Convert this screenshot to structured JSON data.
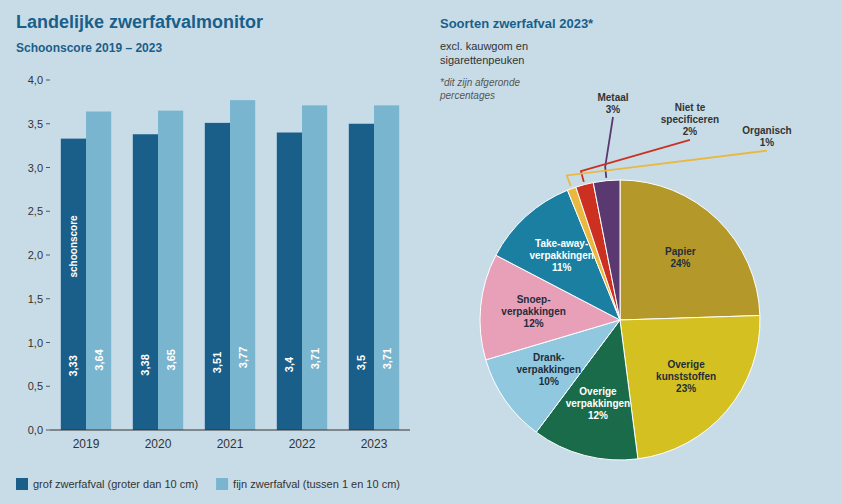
{
  "chart_data": [
    {
      "type": "bar",
      "title": "Landelijke zwerfafvalmonitor",
      "subtitle": "Schoonscore 2019 – 2023",
      "categories": [
        "2019",
        "2020",
        "2021",
        "2022",
        "2023"
      ],
      "series": [
        {
          "name": "grof zwerfafval (groter dan 10 cm)",
          "color": "#1a5f8a",
          "values": [
            3.33,
            3.38,
            3.51,
            3.4,
            3.5
          ],
          "value_labels": [
            "3,33",
            "3,38",
            "3,51",
            "3,4",
            "3,5"
          ]
        },
        {
          "name": "fijn zwerfafval (tussen 1 en 10 cm)",
          "color": "#7ab5d0",
          "values": [
            3.64,
            3.65,
            3.77,
            3.71,
            3.71
          ],
          "value_labels": [
            "3,64",
            "3,65",
            "3,77",
            "3,71",
            "3,71"
          ]
        }
      ],
      "annotations": [
        "schoonscore"
      ],
      "ylim": [
        0,
        4.0
      ],
      "yticks": [
        {
          "value": 0.0,
          "label": "0,0"
        },
        {
          "value": 0.5,
          "label": "0,5"
        },
        {
          "value": 1.0,
          "label": "1,0"
        },
        {
          "value": 1.5,
          "label": "1,5"
        },
        {
          "value": 2.0,
          "label": "2,0"
        },
        {
          "value": 2.5,
          "label": "2,5"
        },
        {
          "value": 3.0,
          "label": "3,0"
        },
        {
          "value": 3.5,
          "label": "3,5"
        },
        {
          "value": 4.0,
          "label": "4,0"
        }
      ],
      "grid": false,
      "legend": "bottom",
      "data_labels": true
    },
    {
      "type": "pie",
      "title": "Soorten zwerfafval 2023*",
      "subtitle": "excl. kauwgom en\nsigarettenpeuken",
      "note": "*dit zijn afgeronde\npercentages",
      "categories": [
        "Papier",
        "Overige\nkunststoffen",
        "Overige\nverpakkingen",
        "Drank-\nverpakkingen",
        "Snoep-\nverpakkingen",
        "Take-away-\nverpakkingen",
        "Organisch",
        "Niet te\nspecificeren",
        "Metaal"
      ],
      "values": [
        24,
        23,
        12,
        10,
        12,
        11,
        1,
        2,
        3
      ],
      "value_labels": [
        "24%",
        "23%",
        "12%",
        "10%",
        "12%",
        "11%",
        "1%",
        "2%",
        "3%"
      ],
      "colors": [
        "#b5982a",
        "#d4c020",
        "#1a6b4a",
        "#90c8e0",
        "#e8a0b8",
        "#1a7fa0",
        "#e8b840",
        "#cc3020",
        "#5a3870"
      ],
      "data_labels": true
    }
  ]
}
